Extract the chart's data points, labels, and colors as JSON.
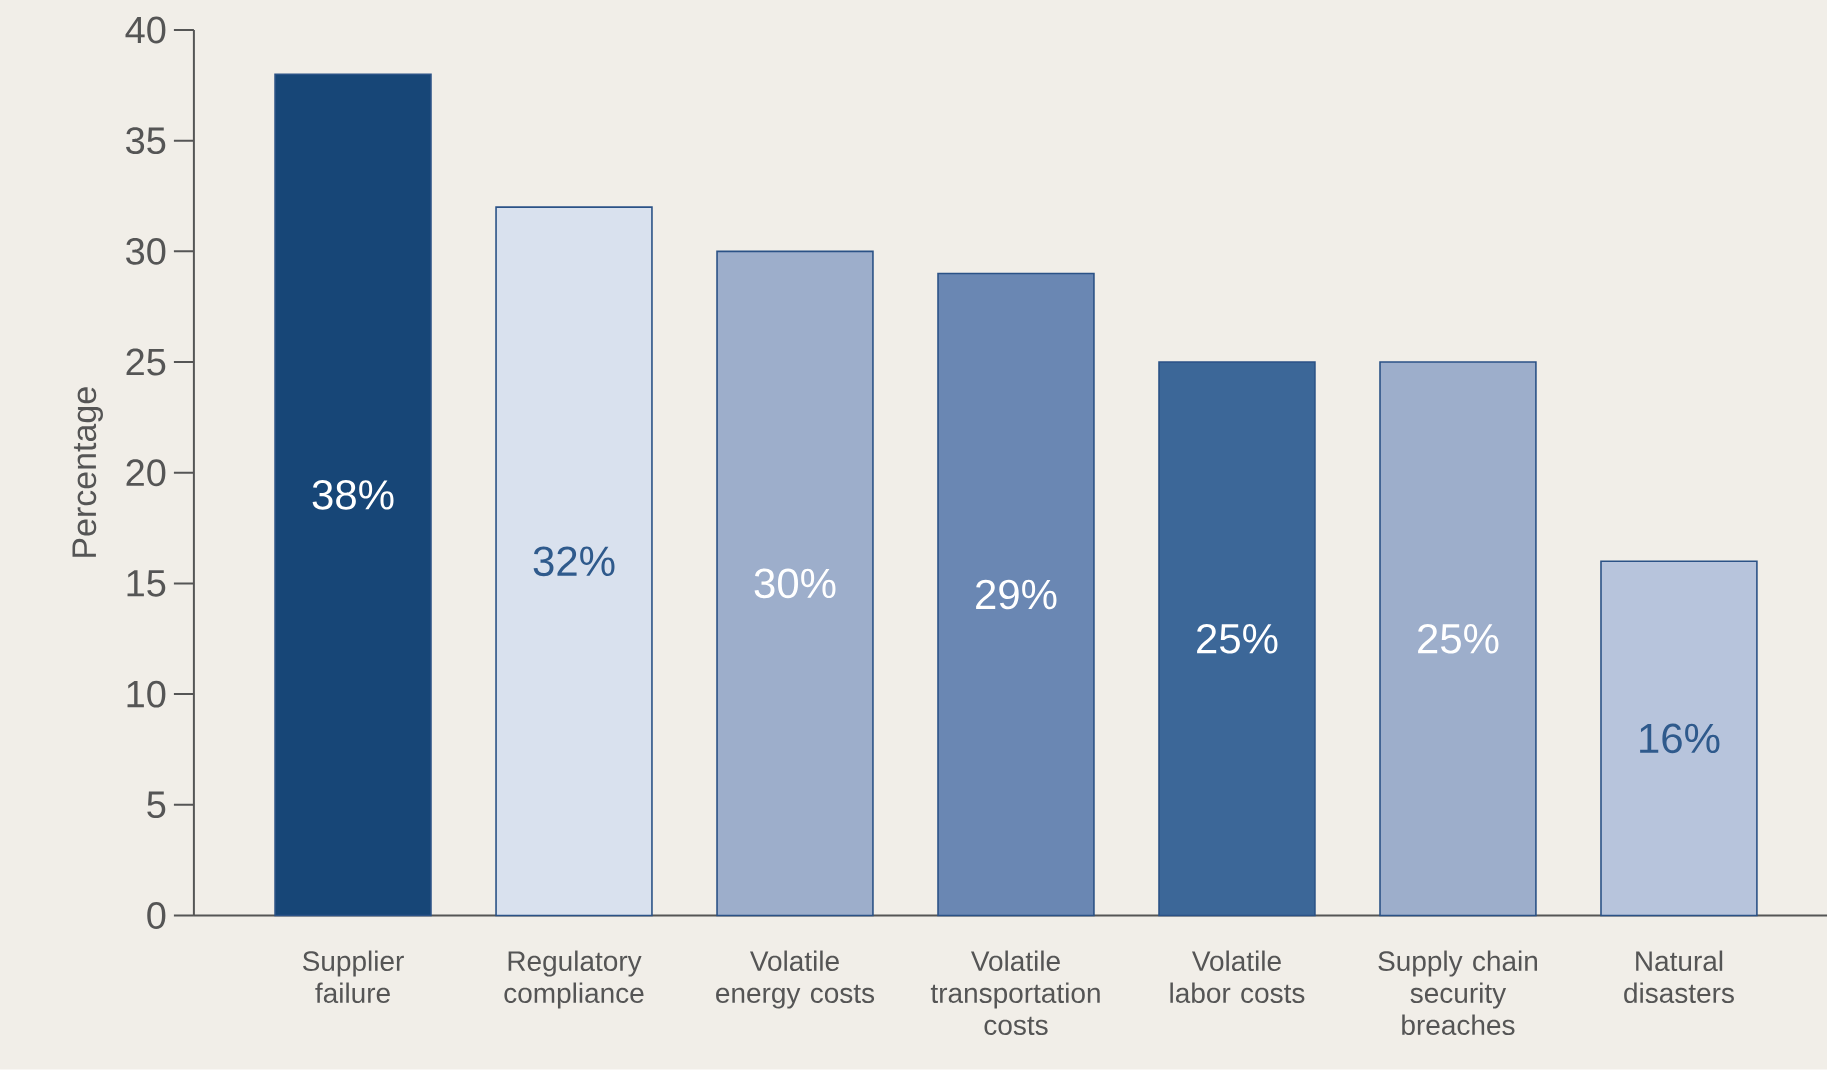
{
  "chart_data": {
    "type": "bar",
    "ylabel": "Percentage",
    "categories": [
      "Supplier failure",
      "Regulatory compliance",
      "Volatile energy costs",
      "Volatile transportation costs",
      "Volatile labor costs",
      "Supply chain security breaches",
      "Natural disasters"
    ],
    "values": [
      38,
      32,
      30,
      29,
      25,
      25,
      16
    ],
    "colors": [
      "#174677",
      "#d9e1ee",
      "#9daecb",
      "#6a87b3",
      "#3c6798",
      "#9daecb",
      "#b7c4dc"
    ],
    "value_labels": [
      "38%",
      "32%",
      "30%",
      "29%",
      "25%",
      "25%",
      "16%"
    ],
    "ylim": [
      0,
      40
    ],
    "yticks": [
      0,
      5,
      10,
      15,
      20,
      25,
      30,
      35,
      40
    ]
  }
}
